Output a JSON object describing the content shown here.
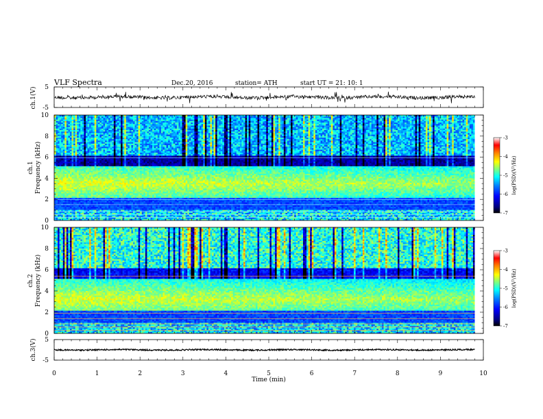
{
  "header": {
    "title": "VLF  Spectra",
    "date": "Dec.20, 2016",
    "station": "station= ATH",
    "start": "start  UT  =    21: 10: 1"
  },
  "chart_data": [
    {
      "type": "line",
      "panel": "ch1-waveform",
      "ylabel": "ch.1(V)",
      "ylim": [
        -5,
        5
      ],
      "yticks": [
        "5",
        "-5"
      ],
      "x_range_min": [
        0,
        9.8
      ],
      "description_color": "#000000"
    },
    {
      "type": "heatmap",
      "panel": "ch1-spectrogram",
      "ylabel": "ch.1\nFrequency  (kHz)",
      "ylabel_line1": "ch.1",
      "ylabel_line2": "Frequency  (kHz)",
      "ylim": [
        0,
        10
      ],
      "yticks": [
        "0",
        "2",
        "4",
        "6",
        "8",
        "10"
      ],
      "xlim": [
        0,
        10
      ],
      "colorbar": {
        "label": "log(PSD)(V²/Hz)",
        "range": [
          -7,
          -3
        ],
        "ticks": [
          "-3",
          "-4",
          "-5",
          "-6",
          "-7"
        ]
      }
    },
    {
      "type": "heatmap",
      "panel": "ch2-spectrogram",
      "ylabel_line1": "ch.2",
      "ylabel_line2": "Frequency  (kHz)",
      "ylim": [
        0,
        10
      ],
      "yticks": [
        "0",
        "2",
        "4",
        "6",
        "8",
        "10"
      ],
      "xlim": [
        0,
        10
      ],
      "colorbar": {
        "label": "log(PSD)(V²/Hz)",
        "range": [
          -7,
          -3
        ],
        "ticks": [
          "-3",
          "-4",
          "-5",
          "-6",
          "-7"
        ]
      }
    },
    {
      "type": "line",
      "panel": "ch3-waveform",
      "ylabel": "ch.3(V)",
      "ylim": [
        -5,
        5
      ],
      "yticks": [
        "5",
        "-5"
      ],
      "xlabel": "Time  (min)",
      "xlim": [
        0,
        10
      ],
      "xticks": [
        "0",
        "1",
        "2",
        "3",
        "4",
        "5",
        "6",
        "7",
        "8",
        "9",
        "10"
      ]
    }
  ],
  "colors": {
    "background": "#ffffff",
    "colormap": [
      "#000000",
      "#00007f",
      "#0000ff",
      "#007fff",
      "#00ffff",
      "#7fff7f",
      "#ffff00",
      "#ff7f00",
      "#ff0000",
      "#ffffff"
    ]
  }
}
